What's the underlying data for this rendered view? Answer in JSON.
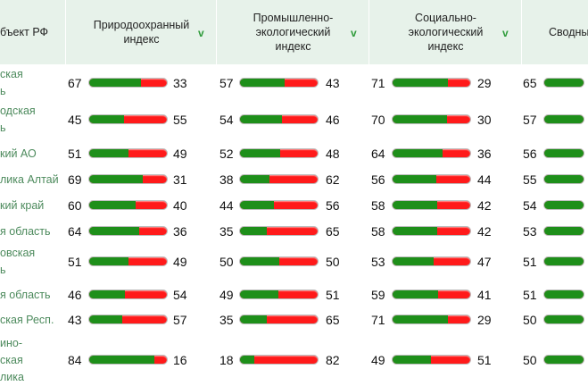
{
  "header": {
    "region": "бъект РФ",
    "columns": [
      {
        "title_lines": [
          "Природоохранный",
          "индекс"
        ],
        "sort_icon": "v"
      },
      {
        "title_lines": [
          "Промышленно-",
          "экологический",
          "индекс"
        ],
        "sort_icon": "v"
      },
      {
        "title_lines": [
          "Социально-",
          "экологический",
          "индекс"
        ],
        "sort_icon": "v"
      },
      {
        "title_lines": [
          "Сводны"
        ],
        "sort_icon": ""
      }
    ]
  },
  "colors": {
    "header_bg": "#e7f2ea",
    "good": "#1e8f1a",
    "bad": "#ff1a1a",
    "link": "#4c8a5c",
    "sort": "#2e9b3a"
  },
  "rows": [
    {
      "region": "ская\nь",
      "v": [
        [
          67,
          33
        ],
        [
          57,
          43
        ],
        [
          71,
          29
        ]
      ],
      "total": 65
    },
    {
      "region": "одская\nь",
      "v": [
        [
          45,
          55
        ],
        [
          54,
          46
        ],
        [
          70,
          30
        ]
      ],
      "total": 57
    },
    {
      "region": "кий АО",
      "v": [
        [
          51,
          49
        ],
        [
          52,
          48
        ],
        [
          64,
          36
        ]
      ],
      "total": 56
    },
    {
      "region": "лика Алтай",
      "v": [
        [
          69,
          31
        ],
        [
          38,
          62
        ],
        [
          56,
          44
        ]
      ],
      "total": 55
    },
    {
      "region": "кий край",
      "v": [
        [
          60,
          40
        ],
        [
          44,
          56
        ],
        [
          58,
          42
        ]
      ],
      "total": 54
    },
    {
      "region": "я область",
      "v": [
        [
          64,
          36
        ],
        [
          35,
          65
        ],
        [
          58,
          42
        ]
      ],
      "total": 53
    },
    {
      "region": "овская\nь",
      "v": [
        [
          51,
          49
        ],
        [
          50,
          50
        ],
        [
          53,
          47
        ]
      ],
      "total": 51
    },
    {
      "region": "я область",
      "v": [
        [
          46,
          54
        ],
        [
          49,
          51
        ],
        [
          59,
          41
        ]
      ],
      "total": 51
    },
    {
      "region": "ская Респ.",
      "v": [
        [
          43,
          57
        ],
        [
          35,
          65
        ],
        [
          71,
          29
        ]
      ],
      "total": 50
    },
    {
      "region": "ино-\nская\nлика",
      "v": [
        [
          84,
          16
        ],
        [
          18,
          82
        ],
        [
          49,
          51
        ]
      ],
      "total": 50
    }
  ]
}
